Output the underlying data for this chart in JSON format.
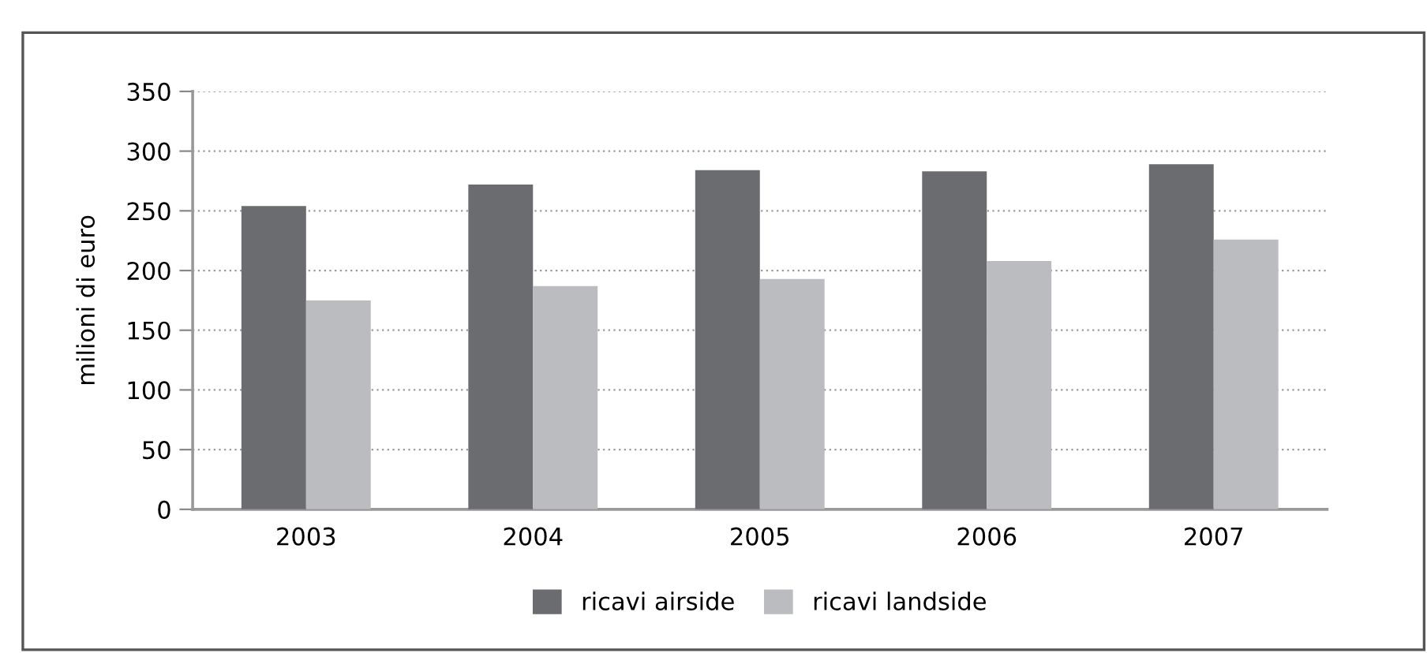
{
  "chart_data": {
    "type": "bar",
    "ylabel": "milioni di euro",
    "categories": [
      "2003",
      "2004",
      "2005",
      "2006",
      "2007"
    ],
    "series": [
      {
        "name": "ricavi airside",
        "color": "#6b6c70",
        "values": [
          254,
          272,
          284,
          283,
          289
        ]
      },
      {
        "name": "ricavi landside",
        "color": "#bbbcbf",
        "values": [
          175,
          187,
          193,
          208,
          226
        ]
      }
    ],
    "ylim": [
      0,
      350
    ],
    "yticks": [
      0,
      50,
      100,
      150,
      200,
      250,
      300,
      350
    ],
    "grid": "y",
    "legend": "bottom"
  }
}
